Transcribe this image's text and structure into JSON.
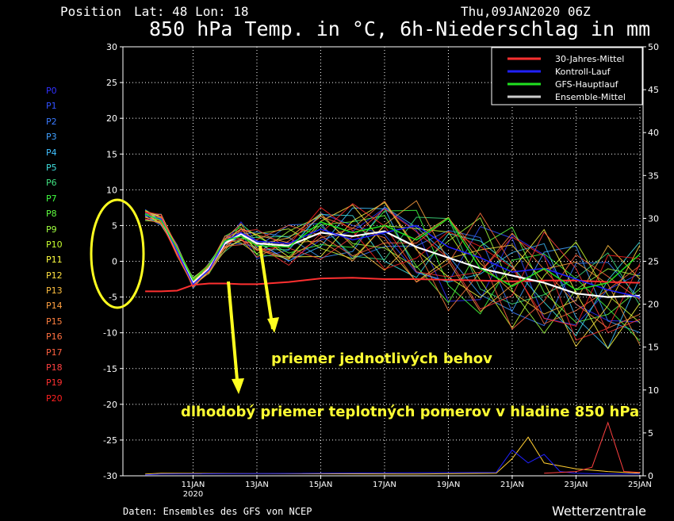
{
  "header": {
    "position_label": "Position",
    "lat_lon": "Lat: 48 Lon: 18",
    "datetime": "Thu,09JAN2020 06Z",
    "title": "850 hPa Temp. in °C, 6h-Niederschlag in mm"
  },
  "footer": {
    "source": "Daten: Ensembles des GFS von NCEP",
    "brand": "Wetterzentrale"
  },
  "annotations": {
    "runs_average": "priemer jednotlivých behov",
    "longterm_average": "dlhodobý priemer teplotných pomerov v hladine 850 hPa"
  },
  "members": {
    "labels": [
      "P0",
      "P1",
      "P2",
      "P3",
      "P4",
      "P5",
      "P6",
      "P7",
      "P8",
      "P9",
      "P10",
      "P11",
      "P12",
      "P13",
      "P14",
      "P15",
      "P16",
      "P17",
      "P18",
      "P19",
      "P20"
    ],
    "colors": [
      "#3030ff",
      "#3050ff",
      "#3a7aff",
      "#40a0ff",
      "#40c0ff",
      "#40e0e0",
      "#40e080",
      "#40ff40",
      "#60ff40",
      "#a0ff40",
      "#c8ff30",
      "#ffff40",
      "#ffe040",
      "#ffc040",
      "#ffa040",
      "#ff8040",
      "#ff7040",
      "#ff6040",
      "#ff4040",
      "#ff3030",
      "#ff2020"
    ]
  },
  "chart_data": {
    "type": "line",
    "x_tick_labels": [
      "11JAN",
      "13JAN",
      "15JAN",
      "17JAN",
      "19JAN",
      "21JAN",
      "23JAN",
      "25JAN"
    ],
    "x_tick_day_offsets": [
      2,
      4,
      6,
      8,
      10,
      12,
      14,
      16
    ],
    "x_sublabel": "2020",
    "y_left_ticks": [
      30,
      25,
      20,
      15,
      10,
      5,
      0,
      -5,
      -10,
      -15,
      -20,
      -25,
      -30
    ],
    "y_right_ticks": [
      50,
      45,
      40,
      35,
      30,
      25,
      20,
      15,
      10,
      5,
      0
    ],
    "ylim_left": [
      -30,
      30
    ],
    "ylim_right": [
      0,
      50
    ],
    "legend": {
      "placement": "top-right",
      "entries": [
        {
          "name": "30-Jahres-Mittel",
          "color": "#ff3030"
        },
        {
          "name": "Kontroll-Lauf",
          "color": "#2020ff"
        },
        {
          "name": "GFS-Hauptlauf",
          "color": "#20e020"
        },
        {
          "name": "Ensemble-Mittel",
          "color": "#cccccc"
        }
      ]
    },
    "series_x_days": [
      0.5,
      1,
      1.5,
      2,
      2.5,
      3,
      3.5,
      4,
      5,
      6,
      7,
      8,
      9,
      10,
      11,
      12,
      13,
      14,
      15,
      16
    ],
    "series": [
      {
        "name": "30-Jahres-Mittel",
        "color": "#ff3030",
        "values": [
          -4.2,
          -4.2,
          -4.1,
          -3.3,
          -3.1,
          -3.1,
          -3.2,
          -3.2,
          -2.9,
          -2.4,
          -2.3,
          -2.5,
          -2.5,
          -2.6,
          -2.7,
          -2.8,
          -2.7,
          -2.7,
          -2.9,
          -3.0
        ]
      },
      {
        "name": "Ensemble-Mittel",
        "color": "#ffffff",
        "values": [
          6.5,
          5.8,
          1.5,
          -3.0,
          -1.0,
          2.5,
          3.8,
          2.5,
          2.2,
          4.0,
          3.5,
          4.2,
          2.0,
          0.5,
          -1.0,
          -2.0,
          -3.0,
          -4.5,
          -5.0,
          -4.8
        ]
      },
      {
        "name": "Kontroll-Lauf",
        "color": "#2020ff",
        "values": [
          6.4,
          5.9,
          1.4,
          -3.2,
          -1.2,
          2.8,
          4.0,
          2.8,
          2.5,
          4.5,
          3.0,
          4.0,
          5.0,
          2.0,
          0.5,
          -1.5,
          -1.0,
          -2.5,
          -4.0,
          -5.0
        ]
      },
      {
        "name": "GFS-Hauptlauf",
        "color": "#20e020",
        "values": [
          6.6,
          5.7,
          1.8,
          -2.6,
          -0.5,
          2.9,
          3.5,
          2.2,
          2.0,
          5.5,
          4.0,
          5.0,
          3.0,
          6.0,
          -1.0,
          -3.5,
          -1.0,
          -4.0,
          -3.0,
          1.0
        ]
      }
    ],
    "precip_series": [
      {
        "color": "#ffcc30",
        "x_days": [
          0.5,
          1,
          9,
          11.5,
          12,
          12.5,
          13,
          14,
          15,
          16
        ],
        "values": [
          0.2,
          0.3,
          0.2,
          0.3,
          2.0,
          4.5,
          1.5,
          0.8,
          0.5,
          0.3
        ]
      },
      {
        "color": "#2020ff",
        "x_days": [
          0.5,
          1,
          11.5,
          12,
          12.5,
          13,
          13.5,
          14,
          15,
          16
        ],
        "values": [
          0.1,
          0.2,
          0.4,
          3.0,
          1.5,
          2.5,
          0.5,
          0.3,
          0.2,
          0.2
        ]
      },
      {
        "color": "#ff4040",
        "x_days": [
          13,
          14,
          14.5,
          15,
          15.5,
          16
        ],
        "values": [
          0.3,
          0.5,
          1.0,
          6.2,
          0.5,
          0.4
        ]
      }
    ]
  }
}
